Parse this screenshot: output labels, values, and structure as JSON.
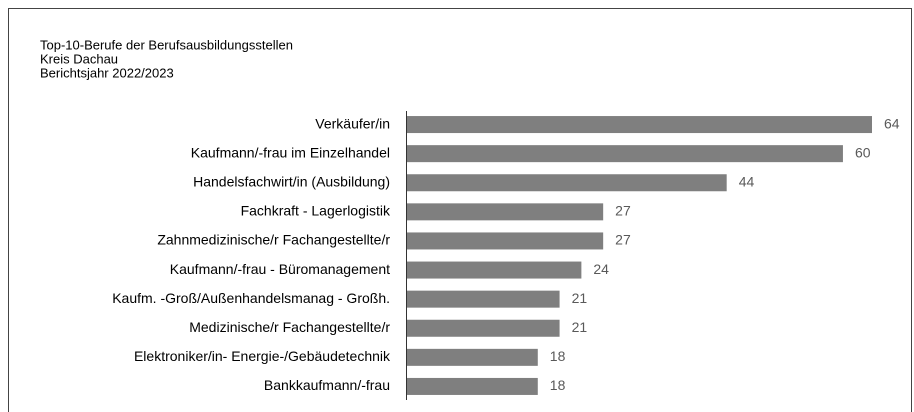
{
  "chart_data": {
    "type": "barh",
    "title": "Top-10-Berufe der Berufsausbildungsstellen",
    "subtitle": [
      "Kreis Dachau",
      "Berichtsjahr 2022/2023"
    ],
    "categories": [
      "Verkäufer/in",
      "Kaufmann/-frau im Einzelhandel",
      "Handelsfachwirt/in (Ausbildung)",
      "Fachkraft - Lagerlogistik",
      "Zahnmedizinische/r Fachangestellte/r",
      "Kaufmann/-frau - Büromanagement",
      "Kaufm. -Groß/Außenhandelsmanag - Großh.",
      "Medizinische/r Fachangestellte/r",
      "Elektroniker/in- Energie-/Gebäudetechnik",
      "Bankkaufmann/-frau"
    ],
    "values": [
      64,
      60,
      44,
      27,
      27,
      24,
      21,
      21,
      18,
      18
    ],
    "color": "#7f7f7f"
  }
}
